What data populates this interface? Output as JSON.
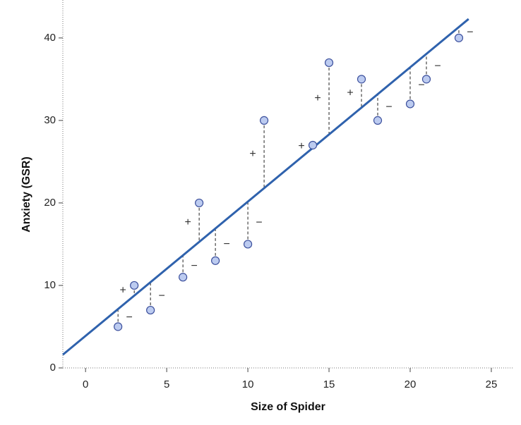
{
  "chart_data": {
    "type": "scatter",
    "x_label": "Size of Spider",
    "y_label": "Anxiety (GSR)",
    "x": [
      2,
      3,
      4,
      6,
      7,
      8,
      10,
      11,
      14,
      15,
      17,
      18,
      20,
      21,
      23
    ],
    "values": [
      5,
      10,
      7,
      11,
      20,
      13,
      15,
      30,
      27,
      37,
      35,
      30,
      32,
      35,
      40
    ],
    "residual_signs": [
      "−",
      "+",
      "−",
      "−",
      "+",
      "−",
      "−",
      "+",
      "+",
      "+",
      "+",
      "−",
      "−",
      "−",
      "−"
    ],
    "color": "#bccbf0",
    "edge_color": "#3b4f9c",
    "fit_line": {
      "x": [
        -1.4,
        23.6
      ],
      "y": [
        1.6,
        42.3
      ],
      "color": "#2f62ad"
    },
    "xlim": [
      -1.4,
      26.35
    ],
    "ylim": [
      0,
      44.6
    ],
    "xticks": [
      0,
      5,
      10,
      15,
      20,
      25
    ],
    "yticks": [
      0,
      10,
      20,
      30,
      40
    ]
  }
}
